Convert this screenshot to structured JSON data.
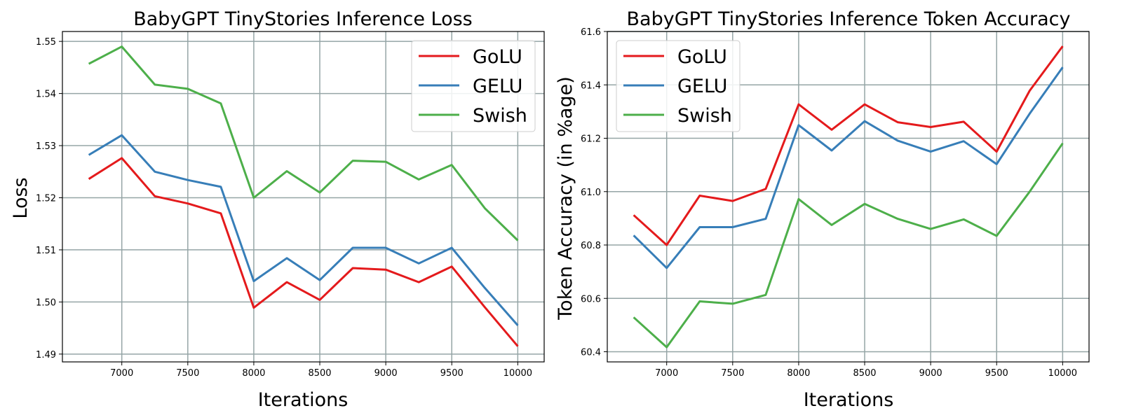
{
  "colors": {
    "GoLU": "#e41a1c",
    "GELU": "#377eb8",
    "Swish": "#4daf4a",
    "grid": "#95a5a6"
  },
  "chart_data": [
    {
      "type": "line",
      "title": "BabyGPT TinyStories Inference Loss",
      "xlabel": "Iterations",
      "ylabel": "Loss",
      "xlim": [
        6550,
        10200
      ],
      "ylim": [
        1.4885,
        1.5519
      ],
      "xticks": [
        7000,
        7500,
        8000,
        8500,
        9000,
        9500,
        10000
      ],
      "yticks": [
        1.49,
        1.5,
        1.51,
        1.52,
        1.53,
        1.54,
        1.55
      ],
      "ytick_decimals": 2,
      "grid": true,
      "legend_position": "top-right",
      "x": [
        6750,
        7000,
        7250,
        7500,
        7750,
        8000,
        8250,
        8500,
        8750,
        9000,
        9250,
        9500,
        9750,
        10000
      ],
      "series": [
        {
          "name": "GoLU",
          "color": "#e41a1c",
          "values": [
            1.5236,
            1.5276,
            1.5203,
            1.5189,
            1.517,
            1.4989,
            1.5038,
            1.5004,
            1.5065,
            1.5062,
            1.5038,
            1.5068,
            1.499,
            1.4915
          ]
        },
        {
          "name": "GELU",
          "color": "#377eb8",
          "values": [
            1.5282,
            1.532,
            1.525,
            1.5234,
            1.5221,
            1.504,
            1.5084,
            1.5042,
            1.5104,
            1.5104,
            1.5074,
            1.5104,
            1.5027,
            1.4955
          ]
        },
        {
          "name": "Swish",
          "color": "#4daf4a",
          "values": [
            1.5457,
            1.549,
            1.5417,
            1.5409,
            1.5381,
            1.52,
            1.5251,
            1.521,
            1.5271,
            1.5269,
            1.5235,
            1.5263,
            1.518,
            1.5118
          ]
        }
      ]
    },
    {
      "type": "line",
      "title": "BabyGPT TinyStories Inference Token Accuracy",
      "xlabel": "Iterations",
      "ylabel": "Token Accuracy (in %age)",
      "xlim": [
        6550,
        10200
      ],
      "ylim": [
        60.362,
        61.6
      ],
      "xticks": [
        7000,
        7500,
        8000,
        8500,
        9000,
        9500,
        10000
      ],
      "yticks": [
        60.4,
        60.6,
        60.8,
        61.0,
        61.2,
        61.4,
        61.6
      ],
      "ytick_decimals": 1,
      "grid": true,
      "legend_position": "top-left",
      "x": [
        6750,
        7000,
        7250,
        7500,
        7750,
        8000,
        8250,
        8500,
        8750,
        9000,
        9250,
        9500,
        9750,
        10000
      ],
      "series": [
        {
          "name": "GoLU",
          "color": "#e41a1c",
          "values": [
            60.912,
            60.8,
            60.985,
            60.965,
            61.01,
            61.327,
            61.232,
            61.327,
            61.26,
            61.242,
            61.262,
            61.15,
            61.378,
            61.545
          ]
        },
        {
          "name": "GELU",
          "color": "#377eb8",
          "values": [
            60.836,
            60.714,
            60.867,
            60.867,
            60.898,
            61.249,
            61.154,
            61.264,
            61.191,
            61.15,
            61.189,
            61.103,
            61.292,
            61.466
          ]
        },
        {
          "name": "Swish",
          "color": "#4daf4a",
          "values": [
            60.529,
            60.417,
            60.589,
            60.58,
            60.613,
            60.972,
            60.875,
            60.954,
            60.898,
            60.86,
            60.896,
            60.834,
            61.0,
            61.181
          ]
        }
      ]
    }
  ]
}
